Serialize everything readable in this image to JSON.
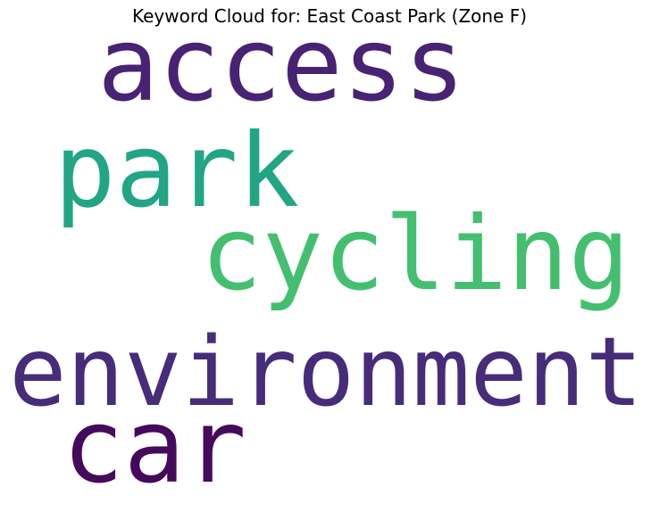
{
  "chart_data": {
    "type": "wordcloud",
    "title": "Keyword Cloud for: East Coast Park (Zone F)",
    "words": [
      {
        "text": "access",
        "color": "#482374"
      },
      {
        "text": "park",
        "color": "#21a585"
      },
      {
        "text": "cycling",
        "color": "#44bf70"
      },
      {
        "text": "environment",
        "color": "#472c7a"
      },
      {
        "text": "car",
        "color": "#450a5c"
      }
    ]
  }
}
